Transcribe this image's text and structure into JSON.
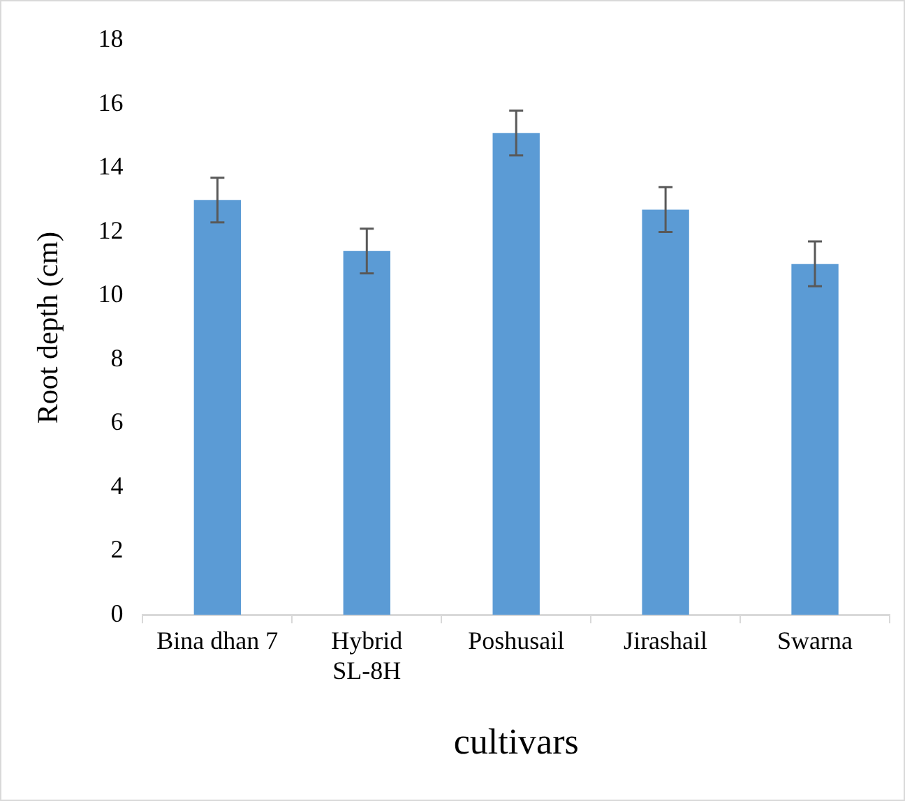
{
  "chart_data": {
    "type": "bar",
    "xlabel": "cultivars",
    "ylabel": "Root depth (cm)",
    "categories": [
      "Bina dhan 7",
      "Hybrid SL-8H",
      "Poshusail",
      "Jirashail",
      "Swarna"
    ],
    "values": [
      13.0,
      11.4,
      15.1,
      12.7,
      11.0
    ],
    "errors": [
      0.7,
      0.7,
      0.7,
      0.7,
      0.7
    ],
    "color": "#5b9bd5",
    "ylim": [
      0,
      18
    ],
    "yticks": [
      0,
      2,
      4,
      6,
      8,
      10,
      12,
      14,
      16,
      18
    ],
    "grid": false,
    "legend": false
  }
}
